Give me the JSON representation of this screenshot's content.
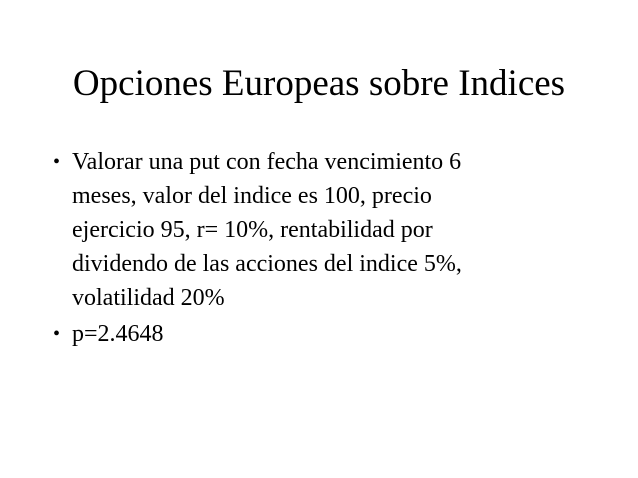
{
  "slide": {
    "title": "Opciones Europeas sobre Indices",
    "bullets": [
      {
        "marker": "•",
        "lines": [
          "Valorar una put con fecha vencimiento 6",
          "meses, valor del indice es 100, precio",
          "ejercicio 95, r= 10%, rentabilidad por",
          "dividendo de las acciones del indice 5%,",
          "volatilidad 20%"
        ]
      },
      {
        "marker": "•",
        "lines": [
          "p=2.4648"
        ]
      }
    ]
  }
}
